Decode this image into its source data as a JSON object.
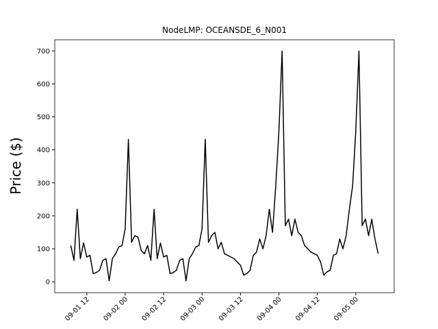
{
  "chart_data": {
    "type": "line",
    "title": "NodeLMP: OCEANSDE_6_N001",
    "ylabel": "Price ($)",
    "color": "#000000",
    "x": [
      "09-01 07",
      "09-01 08",
      "09-01 09",
      "09-01 10",
      "09-01 11",
      "09-01 12",
      "09-01 13",
      "09-01 14",
      "09-01 15",
      "09-01 16",
      "09-01 17",
      "09-01 18",
      "09-01 19",
      "09-01 20",
      "09-01 21",
      "09-01 22",
      "09-01 23",
      "09-02 00",
      "09-02 01",
      "09-02 02",
      "09-02 03",
      "09-02 04",
      "09-02 05",
      "09-02 06",
      "09-02 07",
      "09-02 08",
      "09-02 09",
      "09-02 10",
      "09-02 11",
      "09-02 12",
      "09-02 13",
      "09-02 14",
      "09-02 15",
      "09-02 16",
      "09-02 17",
      "09-02 18",
      "09-02 19",
      "09-02 20",
      "09-02 21",
      "09-02 22",
      "09-02 23",
      "09-03 00",
      "09-03 01",
      "09-03 02",
      "09-03 03",
      "09-03 04",
      "09-03 05",
      "09-03 06",
      "09-03 07",
      "09-03 08",
      "09-03 09",
      "09-03 10",
      "09-03 11",
      "09-03 12",
      "09-03 13",
      "09-03 14",
      "09-03 15",
      "09-03 16",
      "09-03 17",
      "09-03 18",
      "09-03 19",
      "09-03 20",
      "09-03 21",
      "09-03 22",
      "09-03 23",
      "09-04 00",
      "09-04 01",
      "09-04 02",
      "09-04 03",
      "09-04 04",
      "09-04 05",
      "09-04 06",
      "09-04 07",
      "09-04 08",
      "09-04 09",
      "09-04 10",
      "09-04 11",
      "09-04 12",
      "09-04 13",
      "09-04 14",
      "09-04 15",
      "09-04 16",
      "09-04 17",
      "09-04 18",
      "09-04 19",
      "09-04 20",
      "09-04 21",
      "09-04 22",
      "09-04 23",
      "09-05 00",
      "09-05 01",
      "09-05 02",
      "09-05 03",
      "09-05 04",
      "09-05 05",
      "09-05 06",
      "09-05 07"
    ],
    "values": [
      110,
      65,
      220,
      70,
      118,
      75,
      80,
      25,
      28,
      35,
      65,
      70,
      3,
      70,
      85,
      105,
      110,
      160,
      432,
      120,
      140,
      135,
      95,
      85,
      110,
      65,
      220,
      70,
      118,
      75,
      80,
      25,
      28,
      35,
      65,
      70,
      3,
      70,
      85,
      105,
      110,
      160,
      432,
      120,
      140,
      150,
      100,
      120,
      85,
      80,
      75,
      70,
      60,
      50,
      20,
      25,
      35,
      80,
      90,
      130,
      100,
      140,
      220,
      150,
      290,
      455,
      700,
      170,
      190,
      140,
      190,
      150,
      140,
      110,
      100,
      90,
      85,
      80,
      60,
      20,
      30,
      35,
      80,
      85,
      130,
      100,
      140,
      220,
      290,
      455,
      700,
      170,
      190,
      140,
      190,
      130,
      85
    ],
    "xlim": [
      "09-01 02",
      "09-05 12"
    ],
    "xticks": [
      "09-01 12",
      "09-02 00",
      "09-02 12",
      "09-03 00",
      "09-03 12",
      "09-04 00",
      "09-04 12",
      "09-05 00"
    ],
    "ylim": [
      -33,
      734
    ],
    "yticks": [
      0,
      100,
      200,
      300,
      400,
      500,
      600,
      700
    ]
  }
}
